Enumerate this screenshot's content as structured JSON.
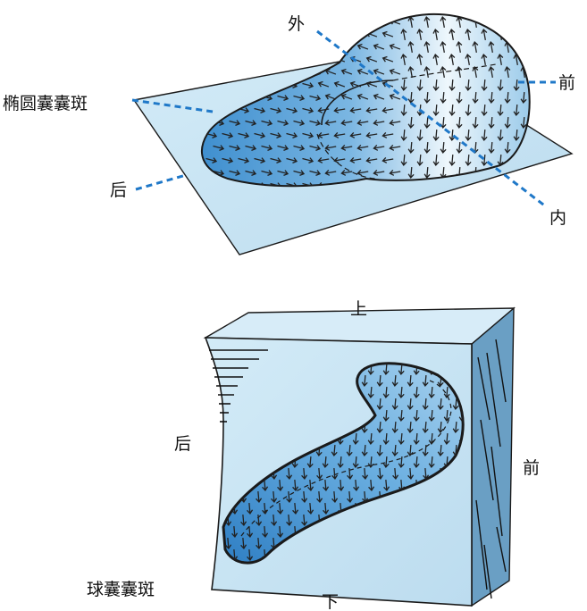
{
  "utricle": {
    "macula_label": "椭圆囊囊斑",
    "dir_outer": "外",
    "dir_front": "前",
    "dir_back": "后",
    "dir_inner": "内"
  },
  "saccule": {
    "macula_label": "球囊囊斑",
    "dir_up": "上",
    "dir_down": "下",
    "dir_back": "后",
    "dir_front": "前"
  },
  "colors": {
    "plate": "#c9e4f2",
    "plate_edge": "#1a1a1a",
    "macula_dark": "#3f8fcf",
    "macula_light": "#eaf5fb",
    "leader": "#1f78c8",
    "arrow": "#222222"
  }
}
